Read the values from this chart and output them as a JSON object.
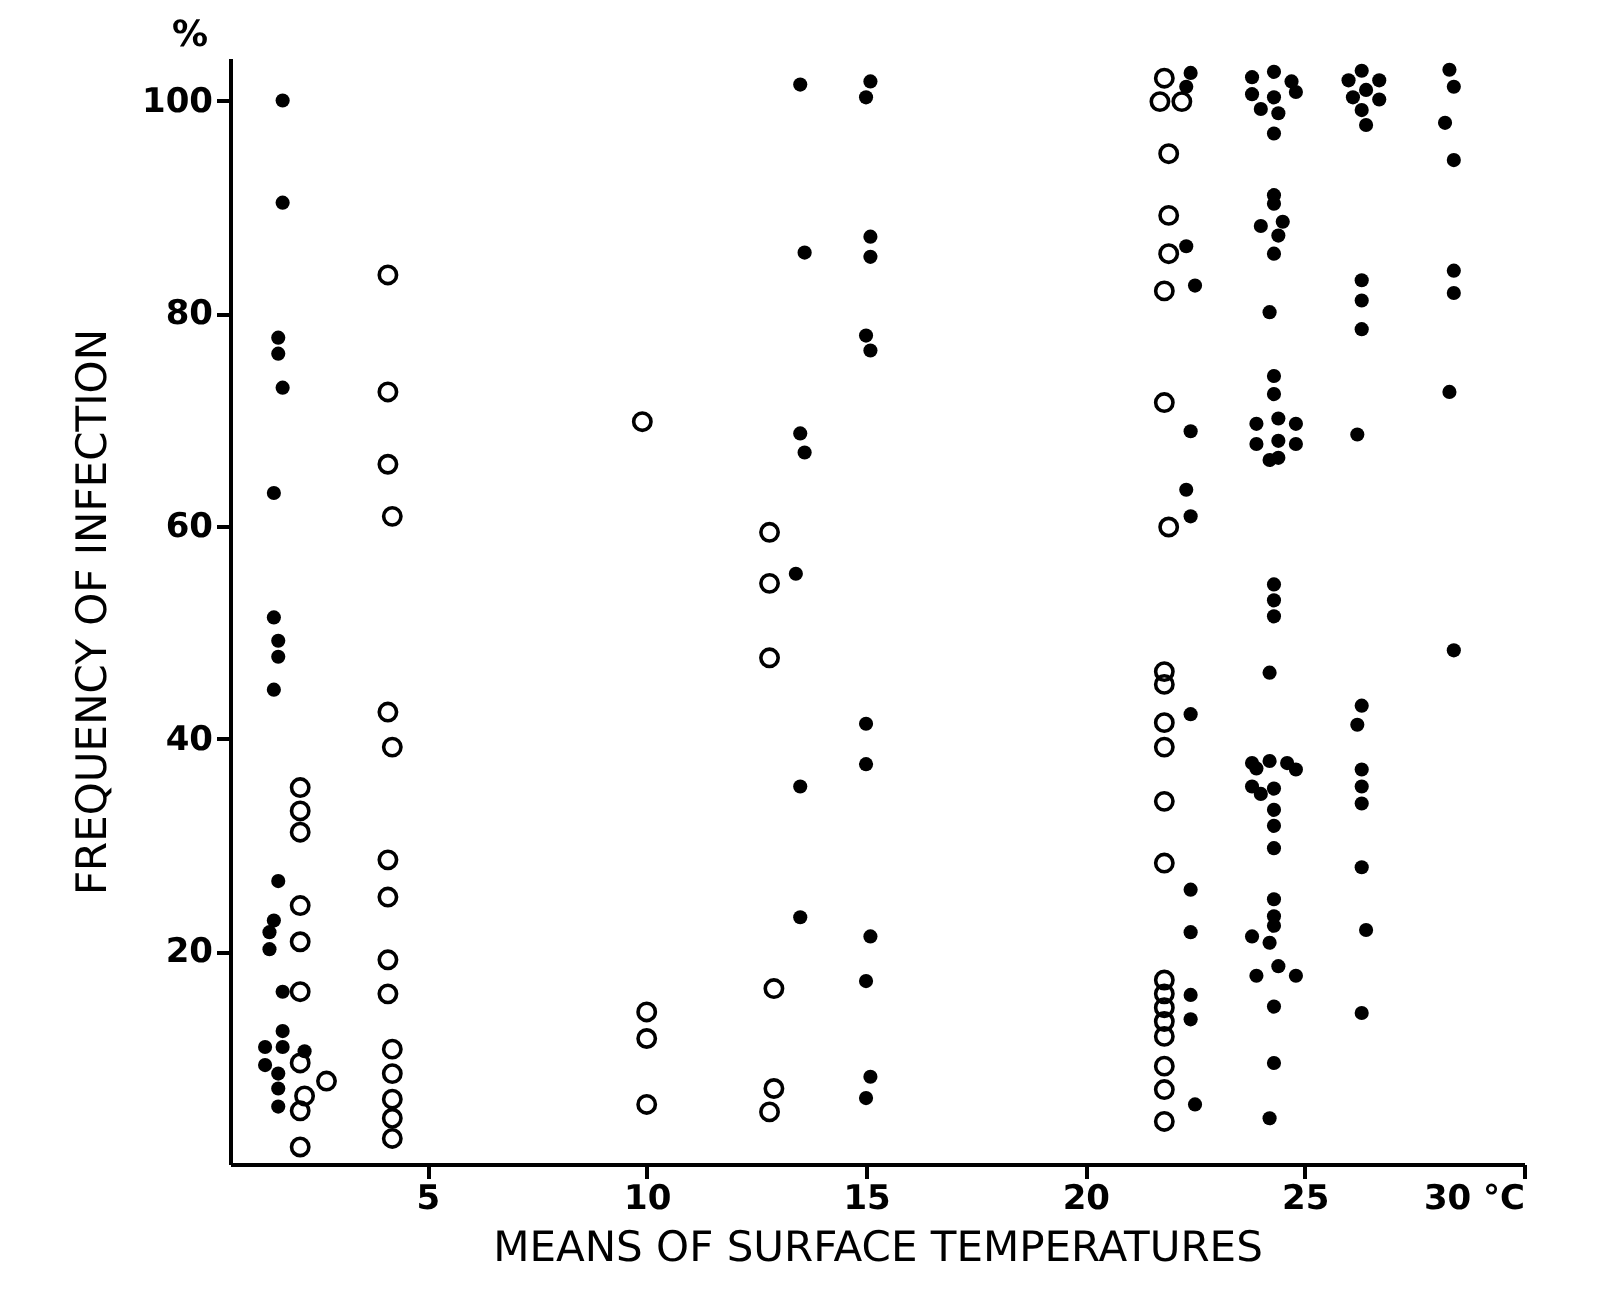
{
  "chart_data": {
    "type": "scatter",
    "xlabel": "MEANS OF SURFACE TEMPERATURES",
    "ylabel": "FREQUENCY OF INFECTION",
    "annotations": [
      "%"
    ],
    "xlim": [
      0.5,
      30
    ],
    "xticks": [
      5,
      10,
      15,
      20,
      25,
      {
        "value": 30,
        "label": "30 °C"
      }
    ],
    "ylim": [
      0,
      104
    ],
    "yticks": [
      20,
      40,
      60,
      80,
      100
    ],
    "grid": false,
    "marker": "circle",
    "series": [
      {
        "color": "#000000",
        "x": [
          1.7,
          1.7,
          1.6,
          1.6,
          1.7,
          1.5,
          1.5,
          1.6,
          1.6,
          1.5,
          1.6,
          1.5,
          1.4,
          1.4,
          1.7,
          1.7,
          1.3,
          1.3,
          1.7,
          2.2,
          1.6,
          1.6,
          1.6,
          13.5,
          13.6,
          13.5,
          13.6,
          13.4,
          13.5,
          13.5,
          15.1,
          15.0,
          15.1,
          15.1,
          15.0,
          15.1,
          15.0,
          15.0,
          15.1,
          15.0,
          15.1,
          15.0,
          22.4,
          22.3,
          22.3,
          22.5,
          22.4,
          22.3,
          22.4,
          22.4,
          22.4,
          22.4,
          22.4,
          22.4,
          22.5,
          24.3,
          23.8,
          24.7,
          24.8,
          23.8,
          24.3,
          24.0,
          24.4,
          24.3,
          24.3,
          24.3,
          24.5,
          24.0,
          24.4,
          24.3,
          24.2,
          24.3,
          24.3,
          24.4,
          23.9,
          24.8,
          24.4,
          23.9,
          24.8,
          24.4,
          24.2,
          24.3,
          24.3,
          24.3,
          24.2,
          23.8,
          24.2,
          24.6,
          24.8,
          23.9,
          23.8,
          24.3,
          24.0,
          24.3,
          24.3,
          24.3,
          24.3,
          24.3,
          24.3,
          23.8,
          24.2,
          24.4,
          23.9,
          24.8,
          24.3,
          24.3,
          24.2,
          26.3,
          26.0,
          26.7,
          26.4,
          26.1,
          26.7,
          26.3,
          26.4,
          26.3,
          26.3,
          26.3,
          26.2,
          26.3,
          26.2,
          26.3,
          26.3,
          26.3,
          26.3,
          26.4,
          26.3,
          28.3,
          28.4,
          28.2,
          28.4,
          28.4,
          28.4,
          28.3,
          28.4
        ],
        "values": [
          100,
          90.4,
          77.7,
          76.2,
          73,
          63.1,
          51.4,
          49.2,
          47.7,
          44.6,
          26.6,
          22.9,
          21.8,
          20.2,
          16.2,
          12.5,
          11,
          9.3,
          11,
          10.6,
          8.5,
          7.1,
          5.4,
          101.5,
          85.7,
          68.7,
          66.9,
          55.5,
          35.5,
          23.2,
          101.8,
          100.3,
          87.2,
          85.3,
          77.9,
          76.5,
          41.4,
          37.6,
          21.4,
          17.2,
          8.2,
          6.2,
          102.6,
          101.3,
          86.3,
          82.6,
          68.9,
          63.4,
          60.9,
          42.3,
          25.8,
          21.8,
          15.9,
          13.6,
          5.6,
          102.7,
          102.2,
          101.8,
          100.8,
          100.6,
          100.3,
          99.2,
          98.8,
          96.9,
          91.1,
          90.3,
          88.6,
          88.2,
          87.3,
          85.6,
          80.1,
          74.1,
          72.4,
          70.1,
          69.6,
          69.6,
          68,
          67.7,
          67.7,
          66.4,
          66.2,
          54.5,
          53,
          51.5,
          46.2,
          37.7,
          37.9,
          37.7,
          37.1,
          37.2,
          35.5,
          35.3,
          34.8,
          33.3,
          31.8,
          29.7,
          24.9,
          23.3,
          22.4,
          21.4,
          20.8,
          18.6,
          17.7,
          17.7,
          14.8,
          9.5,
          4.3,
          102.8,
          101.9,
          101.9,
          101,
          100.3,
          100.1,
          99.1,
          97.7,
          83.1,
          81.2,
          78.5,
          68.6,
          43.1,
          41.3,
          37.1,
          35.5,
          33.9,
          27.9,
          22,
          14.2,
          102.9,
          101.3,
          97.9,
          94.4,
          84,
          81.9,
          72.6,
          48.3
        ]
      },
      {
        "color": "#000000",
        "x": [
          2.1,
          2.1,
          2.1,
          2.1,
          2.1,
          2.1,
          2.1,
          2.7,
          2.2,
          2.1,
          2.1,
          4.1,
          4.1,
          4.1,
          4.2,
          4.1,
          4.2,
          4.1,
          4.1,
          4.1,
          4.1,
          4.2,
          4.2,
          4.2,
          4.2,
          4.2,
          9.9,
          10,
          10,
          10,
          12.8,
          12.8,
          12.8,
          12.9,
          12.9,
          12.8,
          21.8,
          21.7,
          22.2,
          21.9,
          21.9,
          21.9,
          21.8,
          21.8,
          21.9,
          21.8,
          21.8,
          21.8,
          21.8,
          21.8,
          21.8,
          21.8,
          21.8,
          21.8,
          21.8,
          21.8,
          21.8,
          21.8,
          21.8
        ],
        "values": [
          35.4,
          33.2,
          31.2,
          24.3,
          20.9,
          16.2,
          9.5,
          7.8,
          6.4,
          5,
          1.6,
          83.6,
          72.6,
          65.8,
          60.9,
          42.5,
          39.2,
          28.6,
          25.1,
          19.2,
          16,
          10.8,
          8.5,
          6.1,
          4.3,
          2.4,
          69.8,
          14.3,
          11.8,
          5.6,
          59.4,
          54.6,
          47.6,
          16.5,
          7.1,
          4.9,
          102.1,
          99.9,
          99.9,
          95,
          89.2,
          85.6,
          82.1,
          71.6,
          59.9,
          46.3,
          45.1,
          41.5,
          39.2,
          34.1,
          28.3,
          17.3,
          16,
          14.7,
          13.4,
          12,
          9.2,
          7,
          4
        ]
      }
    ]
  }
}
